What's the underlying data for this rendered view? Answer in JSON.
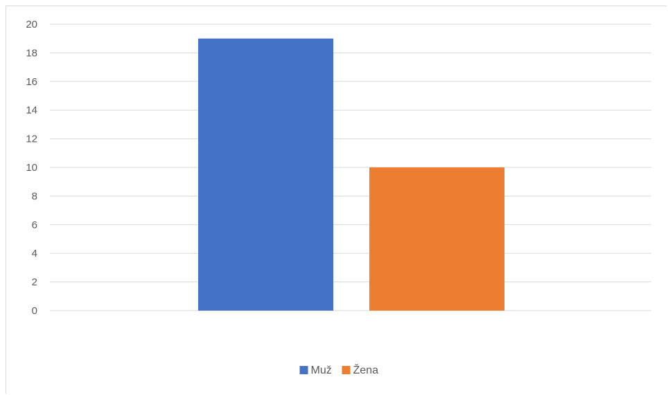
{
  "chart_data": {
    "type": "bar",
    "title": "",
    "xlabel": "",
    "ylabel": "",
    "ylim": [
      0,
      20
    ],
    "yticks": [
      0,
      2,
      4,
      6,
      8,
      10,
      12,
      14,
      16,
      18,
      20
    ],
    "grid": true,
    "legend_position": "bottom",
    "series": [
      {
        "name": "Muž",
        "values": [
          19
        ],
        "color": "#4472C4"
      },
      {
        "name": "Žena",
        "values": [
          10
        ],
        "color": "#ED7D31"
      }
    ],
    "gridline_color": "#d9d9d9",
    "tick_color": "#595959"
  }
}
